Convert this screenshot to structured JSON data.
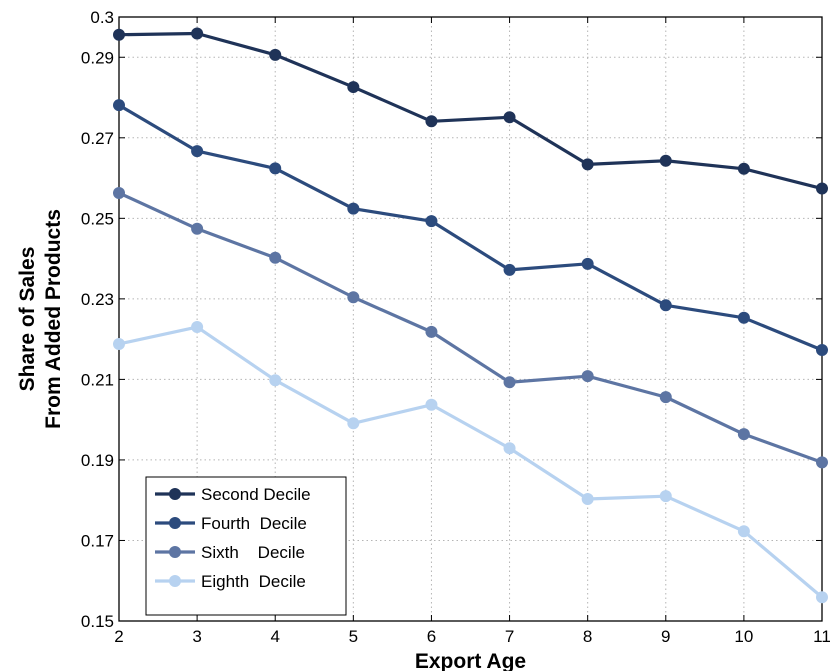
{
  "chart_data": {
    "type": "line",
    "title": "",
    "xlabel": "Export Age",
    "ylabel_lines": [
      "Share of Sales",
      "From Added Products"
    ],
    "x": [
      2,
      3,
      4,
      5,
      6,
      7,
      8,
      9,
      10,
      11
    ],
    "xlim": [
      2,
      11
    ],
    "ylim": [
      0.15,
      0.3
    ],
    "x_ticks": [
      "2",
      "3",
      "4",
      "5",
      "6",
      "7",
      "8",
      "9",
      "10",
      "11"
    ],
    "y_ticks": [
      "0.15",
      "0.17",
      "0.19",
      "0.21",
      "0.23",
      "0.25",
      "0.27",
      "0.29",
      "0.3"
    ],
    "y_tick_values": [
      0.15,
      0.17,
      0.19,
      0.21,
      0.23,
      0.25,
      0.27,
      0.29,
      0.3
    ],
    "grid": true,
    "legend_position": "bottom-left",
    "series": [
      {
        "name": "Second Decile",
        "color": "#1f3358",
        "values": [
          0.2956,
          0.2959,
          0.2906,
          0.2826,
          0.2741,
          0.2751,
          0.2634,
          0.2643,
          0.2623,
          0.2574
        ]
      },
      {
        "name": "Fourth  Decile",
        "color": "#2c4b7d",
        "values": [
          0.2781,
          0.2667,
          0.2624,
          0.2524,
          0.2493,
          0.2372,
          0.2387,
          0.2284,
          0.2253,
          0.2173
        ]
      },
      {
        "name": "Sixth    Decile",
        "color": "#5d75a3",
        "values": [
          0.2563,
          0.2474,
          0.2402,
          0.2304,
          0.2218,
          0.2093,
          0.2108,
          0.2056,
          0.1964,
          0.1894
        ]
      },
      {
        "name": "Eighth  Decile",
        "color": "#b7d2f0",
        "values": [
          0.2188,
          0.223,
          0.2098,
          0.1991,
          0.2037,
          0.1929,
          0.1803,
          0.181,
          0.1723,
          0.1559
        ]
      }
    ]
  }
}
